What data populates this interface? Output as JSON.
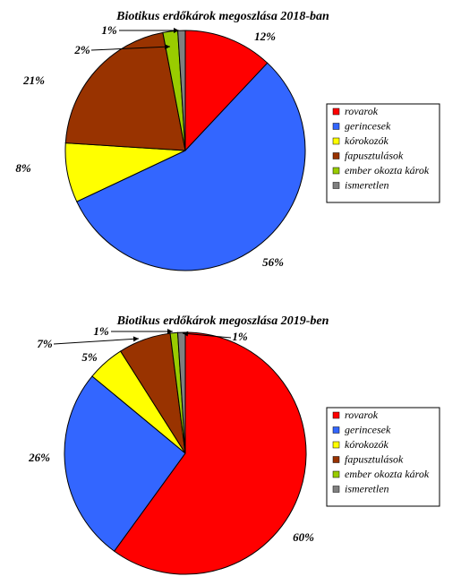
{
  "chart_data": [
    {
      "type": "pie",
      "title": "Biotikus erdőkárok megoszlása 2018-ban",
      "categories": [
        "rovarok",
        "gerincesek",
        "kórokozók",
        "fapusztulások",
        "ember okozta károk",
        "ismeretlen"
      ],
      "values": [
        12,
        56,
        8,
        21,
        2,
        1
      ],
      "labels": [
        "12%",
        "56%",
        "8%",
        "21%",
        "2%",
        "1%"
      ],
      "legend_position": "right"
    },
    {
      "type": "pie",
      "title": "Biotikus erdőkárok megoszlása 2019-ben",
      "categories": [
        "rovarok",
        "gerincesek",
        "kórokozók",
        "fapusztulások",
        "ember okozta károk",
        "ismeretlen"
      ],
      "values": [
        60,
        26,
        5,
        7,
        1,
        1
      ],
      "labels": [
        "60%",
        "26%",
        "5%",
        "7%",
        "1%",
        "1%"
      ],
      "legend_position": "right"
    }
  ],
  "colors": [
    "#ff0000",
    "#3366ff",
    "#ffff00",
    "#993300",
    "#99cc00",
    "#808080"
  ]
}
